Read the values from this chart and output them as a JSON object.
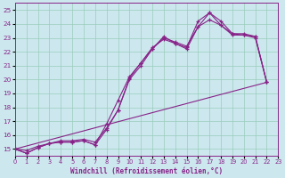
{
  "xlabel": "Windchill (Refroidissement éolien,°C)",
  "xlim": [
    0,
    23
  ],
  "ylim": [
    14.5,
    25.5
  ],
  "yticks": [
    15,
    16,
    17,
    18,
    19,
    20,
    21,
    22,
    23,
    24,
    25
  ],
  "xticks": [
    0,
    1,
    2,
    3,
    4,
    5,
    6,
    7,
    8,
    9,
    10,
    11,
    12,
    13,
    14,
    15,
    16,
    17,
    18,
    19,
    20,
    21,
    22,
    23
  ],
  "bg_color": "#cce8ee",
  "line_color": "#882288",
  "grid_color": "#99ccbb",
  "line1": {
    "x": [
      0,
      1,
      2,
      3,
      4,
      5,
      6,
      7,
      8,
      9,
      10,
      11,
      12,
      13,
      14,
      15,
      16,
      17,
      18,
      19,
      20,
      21,
      22
    ],
    "y": [
      15.0,
      14.7,
      15.1,
      15.4,
      15.5,
      15.5,
      15.6,
      15.3,
      16.4,
      17.8,
      20.0,
      21.0,
      22.2,
      23.1,
      22.6,
      22.2,
      23.8,
      24.8,
      23.9,
      23.2,
      23.2,
      23.0,
      19.8
    ]
  },
  "line2": {
    "x": [
      0,
      1,
      2,
      3,
      4,
      5,
      6,
      7,
      8,
      9,
      10,
      11,
      12,
      13,
      14,
      15,
      16,
      17,
      18,
      19,
      20,
      21,
      22
    ],
    "y": [
      15.0,
      14.7,
      15.1,
      15.4,
      15.5,
      15.5,
      15.6,
      15.3,
      16.8,
      18.5,
      20.2,
      21.2,
      22.3,
      22.9,
      22.6,
      22.3,
      24.2,
      24.8,
      24.2,
      23.3,
      23.3,
      23.1,
      19.8
    ]
  },
  "line3": {
    "x": [
      0,
      1,
      2,
      3,
      4,
      5,
      6,
      7,
      8,
      9,
      10,
      11,
      12,
      13,
      14,
      15,
      16,
      17,
      18,
      19,
      20,
      21,
      22
    ],
    "y": [
      15.0,
      14.9,
      15.2,
      15.4,
      15.6,
      15.6,
      15.7,
      15.5,
      16.5,
      17.8,
      20.1,
      21.2,
      22.2,
      23.0,
      22.7,
      22.4,
      23.8,
      24.3,
      23.9,
      23.3,
      23.2,
      23.1,
      19.8
    ]
  },
  "line4": {
    "x": [
      0,
      22
    ],
    "y": [
      15.0,
      19.8
    ]
  }
}
